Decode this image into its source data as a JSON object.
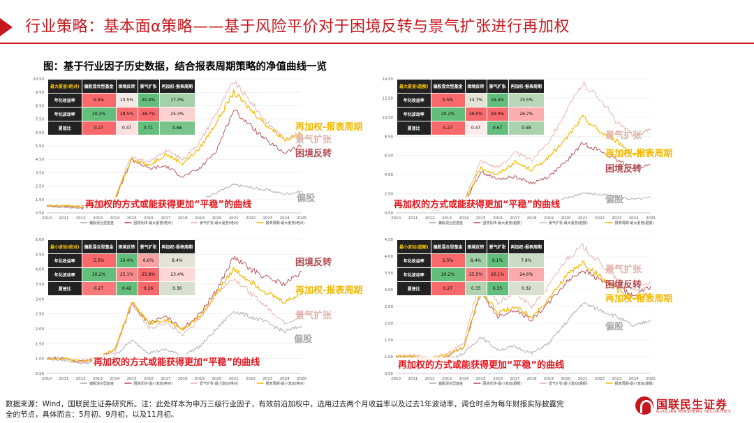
{
  "header": {
    "title": "行业策略：基本面α策略——基于风险平价对于困境反转与景气扩张进行再加权"
  },
  "figure_title": "图：基于行业因子历史数据，结合报表周期策略的净值曲线一览",
  "footer": {
    "text": "数据来源：Wind，国联民生证券研究所。注：此处样本为申万三级行业因子，有效前沿加权中，选用过去两个月收益率以及过去1年波动率，调仓时点为每年财报实际披露完全的节点，具体而言：5月初、9月初，以及11月初。"
  },
  "logo": {
    "cn": "国联民生证券",
    "en": "GUOLIAN MINSHENG SECURITIES"
  },
  "colors": {
    "accent": "#c8161d",
    "biangu": "#a9a9a9",
    "kunjing": "#b24a4f",
    "jingqi": "#e2b1a8",
    "zaijiaquan": "#f5b800",
    "annot": "#e3161d"
  },
  "chart_data": [
    {
      "type": "line",
      "table": {
        "corner": "最大夏普(绝对)",
        "headers": [
          "偏股混合型基金",
          "困境反转",
          "景气扩张",
          "再加权-报表周期"
        ],
        "rows": [
          {
            "label": "年化收益率",
            "values": [
              "5.5%",
              "13.5%",
              "20.4%",
              "17.3%"
            ]
          },
          {
            "label": "年化波动率",
            "values": [
              "20.2%",
              "28.5%",
              "28.7%",
              "25.3%"
            ]
          },
          {
            "label": "夏普比",
            "values": [
              "0.27",
              "0.47",
              "0.71",
              "0.68"
            ]
          }
        ]
      },
      "yticks": [
        "0.50",
        "1.50",
        "2.50",
        "3.50",
        "4.50",
        "5.50",
        "6.50",
        "7.50",
        "8.50",
        "9.50",
        "10.50"
      ],
      "ylim": [
        0.5,
        10.5
      ],
      "xticks": [
        "2010",
        "2011",
        "2012",
        "2013",
        "2014",
        "2015",
        "2016",
        "2017",
        "2018",
        "2019",
        "2020",
        "2021",
        "2022",
        "2023",
        "2024",
        "2025"
      ],
      "legend": [
        "偏股混合型基金",
        "困境反转-最大夏普(绝对)",
        "景气扩张-最大夏普(绝对)",
        "报表周期-最大夏普(绝对)"
      ],
      "line_labels": [
        "再加权-报表周期",
        "景气扩张",
        "困境反转",
        "偏股"
      ],
      "annotation": "再加权的方式或能获得更加“平稳”的曲线",
      "series": [
        {
          "name": "偏股",
          "values": [
            1.0,
            0.95,
            0.85,
            0.9,
            1.1,
            1.6,
            1.2,
            1.3,
            1.1,
            1.4,
            2.0,
            2.6,
            2.4,
            2.2,
            1.9,
            2.1
          ]
        },
        {
          "name": "困境反转",
          "values": [
            1.0,
            1.0,
            0.9,
            1.0,
            1.4,
            4.5,
            3.8,
            4.0,
            3.2,
            3.8,
            5.2,
            8.2,
            7.0,
            5.8,
            5.0,
            5.5
          ]
        },
        {
          "name": "景气扩张",
          "values": [
            1.0,
            1.05,
            0.95,
            1.2,
            1.6,
            4.8,
            4.2,
            5.2,
            4.5,
            5.8,
            8.0,
            10.3,
            8.8,
            7.2,
            6.0,
            6.5
          ]
        },
        {
          "name": "再加权-报表周期",
          "values": [
            1.0,
            1.05,
            0.95,
            1.15,
            1.5,
            4.6,
            4.0,
            4.9,
            4.2,
            5.3,
            7.3,
            9.5,
            8.2,
            7.0,
            6.0,
            6.3
          ]
        }
      ]
    },
    {
      "type": "line",
      "table": {
        "corner": "最大夏普(超额)",
        "headers": [
          "偏股混合型基金",
          "困境反转",
          "景气扩张",
          "再加权-报表周期"
        ],
        "rows": [
          {
            "label": "年化收益率",
            "values": [
              "5.5%",
              "13.7%",
              "19.4%",
              "15.5%"
            ]
          },
          {
            "label": "年化波动率",
            "values": [
              "20.2%",
              "29.0%",
              "29.0%",
              "26.7%"
            ]
          },
          {
            "label": "夏普比",
            "values": [
              "0.27",
              "0.47",
              "0.67",
              "0.58"
            ]
          }
        ]
      },
      "yticks": [
        "0.50",
        "2.50",
        "4.50",
        "6.50",
        "8.50",
        "10.50",
        "12.50",
        "14.50"
      ],
      "ylim": [
        0.5,
        14.5
      ],
      "xticks": [
        "2010",
        "2011",
        "2012",
        "2013",
        "2014",
        "2015",
        "2016",
        "2017",
        "2018",
        "2019",
        "2020",
        "2021",
        "2022",
        "2023",
        "2024",
        "2025"
      ],
      "legend": [
        "偏股混合型基金",
        "困境反转-最大夏普(超额)",
        "景气扩张-最大夏普(超额)",
        "报表周期-最大夏普(超额)"
      ],
      "line_labels": [
        "景气扩张",
        "再加权-报表周期",
        "困境反转",
        "偏股"
      ],
      "annotation": "再加权的方式或能获得更加“平稳”的曲线",
      "series": [
        {
          "name": "偏股",
          "values": [
            1.0,
            0.95,
            0.85,
            0.9,
            1.1,
            1.6,
            1.2,
            1.3,
            1.1,
            1.4,
            2.0,
            2.6,
            2.4,
            2.2,
            1.9,
            2.1
          ]
        },
        {
          "name": "困境反转",
          "values": [
            1.0,
            1.0,
            0.9,
            1.0,
            1.4,
            4.8,
            4.0,
            4.3,
            3.6,
            4.3,
            5.8,
            7.8,
            7.0,
            6.0,
            5.2,
            5.5
          ]
        },
        {
          "name": "景气扩张",
          "values": [
            1.0,
            1.05,
            0.95,
            1.2,
            1.7,
            6.0,
            5.2,
            6.8,
            6.0,
            8.0,
            11.0,
            14.0,
            12.5,
            10.0,
            8.5,
            9.3
          ]
        },
        {
          "name": "再加权-报表周期",
          "values": [
            1.0,
            1.05,
            0.95,
            1.15,
            1.5,
            5.2,
            4.5,
            5.8,
            5.0,
            6.3,
            8.2,
            10.5,
            9.0,
            8.0,
            6.6,
            6.9
          ]
        }
      ]
    },
    {
      "type": "line",
      "table": {
        "corner": "最小波动(绝对)",
        "headers": [
          "偏股混合型基金",
          "困境反转",
          "景气扩张",
          "再加权-报表周期"
        ],
        "rows": [
          {
            "label": "年化收益率",
            "values": [
              "5.5%",
              "10.4%",
              "6.6%",
              "8.4%"
            ]
          },
          {
            "label": "年化波动率",
            "values": [
              "20.2%",
              "25.1%",
              "25.8%",
              "23.4%"
            ]
          },
          {
            "label": "夏普比",
            "values": [
              "0.27",
              "0.42",
              "0.26",
              "0.36"
            ]
          }
        ]
      },
      "yticks": [
        "0.50",
        "1.00",
        "1.50",
        "2.00",
        "2.50",
        "3.00",
        "3.50",
        "4.00",
        "4.50",
        "5.00"
      ],
      "ylim": [
        0.5,
        5.0
      ],
      "xticks": [
        "2010",
        "2011",
        "2012",
        "2013",
        "2014",
        "2015",
        "2016",
        "2017",
        "2018",
        "2019",
        "2020",
        "2021",
        "2022",
        "2023",
        "2024",
        "2025"
      ],
      "legend": [
        "偏股混合型基金",
        "困境反转-最小波动(绝对)",
        "景气扩张-最小波动(绝对)",
        "报表周期-最小波动(绝对)"
      ],
      "line_labels": [
        "困境反转",
        "再加权-报表周期",
        "景气扩张",
        "偏股"
      ],
      "annotation": "再加权的方式或能获得更加“平稳”的曲线",
      "series": [
        {
          "name": "偏股",
          "values": [
            1.0,
            0.95,
            0.85,
            0.9,
            1.1,
            1.6,
            1.2,
            1.3,
            1.1,
            1.4,
            2.0,
            2.6,
            2.4,
            2.2,
            1.9,
            2.1
          ]
        },
        {
          "name": "困境反转",
          "values": [
            1.0,
            1.0,
            0.9,
            1.0,
            1.3,
            2.8,
            2.2,
            2.4,
            2.0,
            2.5,
            3.3,
            4.4,
            4.0,
            3.7,
            3.5,
            3.9
          ]
        },
        {
          "name": "景气扩张",
          "values": [
            1.0,
            1.0,
            0.85,
            0.95,
            1.2,
            2.9,
            2.0,
            2.2,
            1.8,
            2.3,
            3.2,
            3.7,
            3.2,
            2.7,
            2.2,
            2.4
          ]
        },
        {
          "name": "再加权-报表周期",
          "values": [
            1.0,
            1.0,
            0.9,
            1.0,
            1.3,
            2.9,
            2.2,
            2.3,
            2.0,
            2.4,
            3.2,
            4.0,
            3.6,
            3.2,
            2.9,
            3.2
          ]
        }
      ]
    },
    {
      "type": "line",
      "table": {
        "corner": "最小波动(超额)",
        "headers": [
          "偏股混合型基金",
          "困境反转",
          "景气扩张",
          "再加权-报表周期"
        ],
        "rows": [
          {
            "label": "年化收益率",
            "values": [
              "5.5%",
              "8.4%",
              "9.1%",
              "7.9%"
            ]
          },
          {
            "label": "年化波动率",
            "values": [
              "20.2%",
              "25.5%",
              "26.1%",
              "24.6%"
            ]
          },
          {
            "label": "夏普比",
            "values": [
              "0.27",
              "0.33",
              "0.35",
              "0.32"
            ]
          }
        ]
      },
      "yticks": [
        "0.50",
        "1.00",
        "1.50",
        "2.00",
        "2.50",
        "3.00",
        "3.50",
        "4.00",
        "4.50"
      ],
      "ylim": [
        0.5,
        4.5
      ],
      "xticks": [
        "2010",
        "2011",
        "2012",
        "2013",
        "2014",
        "2015",
        "2016",
        "2017",
        "2018",
        "2019",
        "2020",
        "2021",
        "2022",
        "2023",
        "2024",
        "2025"
      ],
      "legend": [
        "偏股混合型基金",
        "困境反转-最小波动(超额)",
        "景气扩张-最小波动(超额)",
        "报表周期-最小波动(超额)"
      ],
      "line_labels": [
        "景气扩张",
        "困境反转",
        "再加权-报表周期",
        "偏股"
      ],
      "annotation": "再加权的方式或能获得更加“平稳”的曲线",
      "series": [
        {
          "name": "偏股",
          "values": [
            1.0,
            0.95,
            0.85,
            0.9,
            1.1,
            1.6,
            1.2,
            1.3,
            1.1,
            1.4,
            2.0,
            2.6,
            2.4,
            2.2,
            1.9,
            2.1
          ]
        },
        {
          "name": "困境反转",
          "values": [
            1.0,
            1.0,
            0.9,
            1.0,
            1.3,
            2.9,
            2.2,
            2.4,
            2.1,
            2.6,
            3.2,
            3.6,
            3.3,
            3.1,
            2.8,
            3.1
          ]
        },
        {
          "name": "景气扩张",
          "values": [
            1.0,
            1.05,
            0.95,
            1.1,
            1.4,
            3.4,
            2.6,
            2.9,
            2.5,
            3.1,
            3.9,
            4.3,
            3.8,
            3.3,
            3.0,
            3.2
          ]
        },
        {
          "name": "再加权-报表周期",
          "values": [
            1.0,
            1.0,
            0.9,
            1.05,
            1.3,
            3.0,
            2.3,
            2.5,
            2.2,
            2.7,
            3.4,
            3.8,
            3.4,
            3.0,
            2.7,
            2.9
          ]
        }
      ]
    }
  ]
}
